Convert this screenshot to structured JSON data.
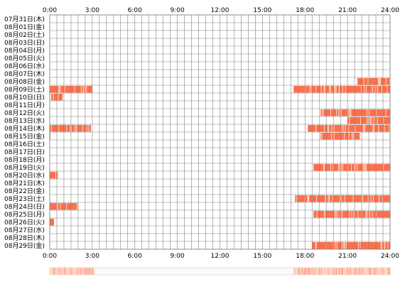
{
  "chart_data": {
    "type": "heatmap",
    "x_ticks": [
      "0:00",
      "3:00",
      "6:00",
      "9:00",
      "12:00",
      "15:00",
      "18:00",
      "21:00",
      "24:00"
    ],
    "x_range_hours": [
      0,
      24
    ],
    "grid": true,
    "rows": [
      {
        "label": "07月31日(木)",
        "segments": []
      },
      {
        "label": "08月01日(金)",
        "segments": []
      },
      {
        "label": "08月02日(土)",
        "segments": []
      },
      {
        "label": "08月03日(日)",
        "segments": []
      },
      {
        "label": "08月04日(月)",
        "segments": []
      },
      {
        "label": "08月05日(火)",
        "segments": []
      },
      {
        "label": "08月06日(水)",
        "segments": []
      },
      {
        "label": "08月07日(木)",
        "segments": []
      },
      {
        "label": "08月08日(金)",
        "segments": [
          [
            21.7,
            24.0
          ]
        ]
      },
      {
        "label": "08月09日(土)",
        "segments": [
          [
            0.0,
            3.0
          ],
          [
            17.2,
            24.0
          ]
        ]
      },
      {
        "label": "08月10日(日)",
        "segments": [
          [
            0.1,
            0.9
          ]
        ]
      },
      {
        "label": "08月11日(月)",
        "segments": []
      },
      {
        "label": "08月12日(火)",
        "segments": [
          [
            19.1,
            24.0
          ]
        ]
      },
      {
        "label": "08月13日(水)",
        "segments": [
          [
            21.0,
            24.0
          ]
        ]
      },
      {
        "label": "08月14日(木)",
        "segments": [
          [
            0.0,
            2.9
          ],
          [
            18.2,
            24.0
          ]
        ]
      },
      {
        "label": "08月15日(金)",
        "segments": [
          [
            0.0,
            0.05
          ],
          [
            19.1,
            21.9
          ]
        ]
      },
      {
        "label": "08月16日(土)",
        "segments": []
      },
      {
        "label": "08月17日(日)",
        "segments": []
      },
      {
        "label": "08月18日(月)",
        "segments": []
      },
      {
        "label": "08月19日(火)",
        "segments": [
          [
            18.6,
            24.0
          ]
        ]
      },
      {
        "label": "08月20日(水)",
        "segments": [
          [
            0.0,
            0.6
          ]
        ]
      },
      {
        "label": "08月21日(木)",
        "segments": []
      },
      {
        "label": "08月22日(金)",
        "segments": []
      },
      {
        "label": "08月23日(土)",
        "segments": [
          [
            17.3,
            24.0
          ]
        ]
      },
      {
        "label": "08月24日(日)",
        "segments": [
          [
            0.0,
            2.0
          ]
        ]
      },
      {
        "label": "08月25日(月)",
        "segments": [
          [
            18.6,
            24.0
          ]
        ]
      },
      {
        "label": "08月26日(火)",
        "segments": [
          [
            0.0,
            0.3
          ]
        ]
      },
      {
        "label": "08月27日(水)",
        "segments": []
      },
      {
        "label": "08月28日(木)",
        "segments": []
      },
      {
        "label": "08月29日(金)",
        "segments": [
          [
            18.5,
            24.0
          ]
        ]
      }
    ],
    "summary_bar": {
      "segments": [
        [
          0.0,
          3.1
        ],
        [
          17.2,
          24.0
        ]
      ]
    },
    "colors": {
      "active": "#ff6f49",
      "gap": "#ffd2c2",
      "grid": "#808080",
      "summary_light": "#ffd4c4",
      "summary_dark": "#ff8f70"
    }
  }
}
